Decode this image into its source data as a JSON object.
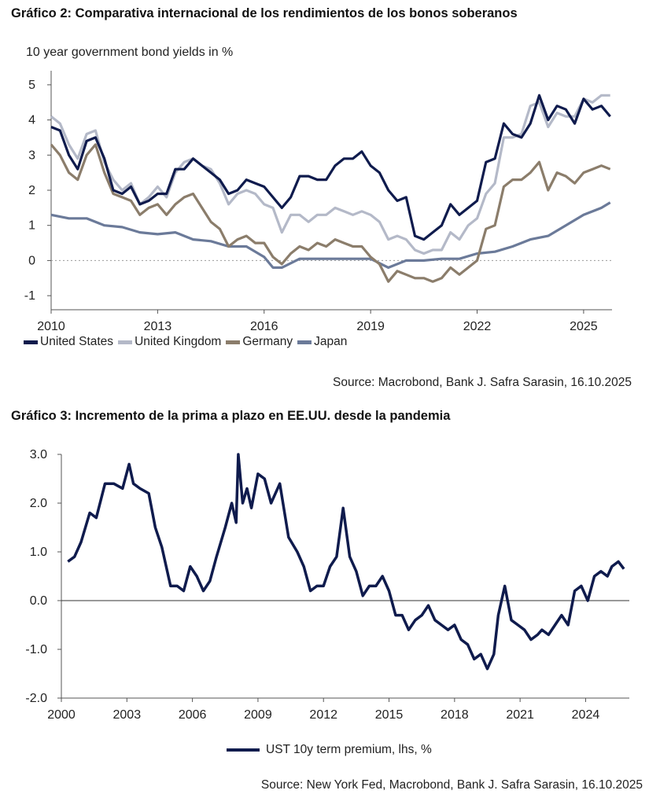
{
  "chart_data": [
    {
      "type": "line",
      "title": "Gráfico 2: Comparativa internacional de los rendimientos de los bonos soberanos",
      "subtitle": "10 year government bond yields in %",
      "xlabel": "",
      "ylabel": "",
      "xlim": [
        2010.0,
        2025.8
      ],
      "ylim": [
        -1.4,
        5.4
      ],
      "x_ticks": [
        2010,
        2013,
        2016,
        2019,
        2022,
        2025
      ],
      "x_tick_labels": [
        "2010",
        "2013",
        "2016",
        "2019",
        "2022",
        "2025"
      ],
      "y_ticks": [
        -1,
        0,
        1,
        2,
        3,
        4,
        5
      ],
      "y_tick_labels": [
        "-1",
        "0",
        "1",
        "2",
        "3",
        "4",
        "5"
      ],
      "zero_line": "dotted",
      "grid": false,
      "legend_position": "bottom-left",
      "source": "Source: Macrobond, Bank J. Safra Sarasin, 16.10.2025",
      "series": [
        {
          "name": "United States",
          "color": "#0f1b4d",
          "x": [
            2010.0,
            2010.25,
            2010.5,
            2010.75,
            2011.0,
            2011.25,
            2011.5,
            2011.75,
            2012.0,
            2012.25,
            2012.5,
            2012.75,
            2013.0,
            2013.25,
            2013.5,
            2013.75,
            2014.0,
            2014.25,
            2014.5,
            2014.75,
            2015.0,
            2015.25,
            2015.5,
            2015.75,
            2016.0,
            2016.25,
            2016.5,
            2016.75,
            2017.0,
            2017.25,
            2017.5,
            2017.75,
            2018.0,
            2018.25,
            2018.5,
            2018.75,
            2019.0,
            2019.25,
            2019.5,
            2019.75,
            2020.0,
            2020.25,
            2020.5,
            2020.75,
            2021.0,
            2021.25,
            2021.5,
            2021.75,
            2022.0,
            2022.25,
            2022.5,
            2022.75,
            2023.0,
            2023.25,
            2023.5,
            2023.75,
            2024.0,
            2024.25,
            2024.5,
            2024.75,
            2025.0,
            2025.25,
            2025.5,
            2025.75
          ],
          "values": [
            3.8,
            3.7,
            3.0,
            2.6,
            3.4,
            3.5,
            2.9,
            2.0,
            1.9,
            2.1,
            1.6,
            1.7,
            1.9,
            1.9,
            2.6,
            2.6,
            2.9,
            2.7,
            2.5,
            2.3,
            1.9,
            2.0,
            2.3,
            2.2,
            2.1,
            1.8,
            1.5,
            1.8,
            2.4,
            2.4,
            2.3,
            2.3,
            2.7,
            2.9,
            2.9,
            3.1,
            2.7,
            2.5,
            2.0,
            1.7,
            1.8,
            0.7,
            0.6,
            0.8,
            1.0,
            1.6,
            1.3,
            1.5,
            1.7,
            2.8,
            2.9,
            3.9,
            3.6,
            3.5,
            3.9,
            4.7,
            4.0,
            4.4,
            4.3,
            3.9,
            4.6,
            4.3,
            4.4,
            4.1
          ]
        },
        {
          "name": "United Kingdom",
          "color": "#b4b9c8",
          "x": [
            2010.0,
            2010.25,
            2010.5,
            2010.75,
            2011.0,
            2011.25,
            2011.5,
            2011.75,
            2012.0,
            2012.25,
            2012.5,
            2012.75,
            2013.0,
            2013.25,
            2013.5,
            2013.75,
            2014.0,
            2014.25,
            2014.5,
            2014.75,
            2015.0,
            2015.25,
            2015.5,
            2015.75,
            2016.0,
            2016.25,
            2016.5,
            2016.75,
            2017.0,
            2017.25,
            2017.5,
            2017.75,
            2018.0,
            2018.25,
            2018.5,
            2018.75,
            2019.0,
            2019.25,
            2019.5,
            2019.75,
            2020.0,
            2020.25,
            2020.5,
            2020.75,
            2021.0,
            2021.25,
            2021.5,
            2021.75,
            2022.0,
            2022.25,
            2022.5,
            2022.75,
            2023.0,
            2023.25,
            2023.5,
            2023.75,
            2024.0,
            2024.25,
            2024.5,
            2024.75,
            2025.0,
            2025.25,
            2025.5,
            2025.75
          ],
          "values": [
            4.1,
            3.9,
            3.3,
            2.9,
            3.6,
            3.7,
            2.8,
            2.3,
            2.0,
            2.2,
            1.6,
            1.8,
            2.1,
            1.8,
            2.5,
            2.8,
            2.9,
            2.7,
            2.6,
            2.2,
            1.6,
            1.9,
            2.0,
            1.9,
            1.6,
            1.5,
            0.8,
            1.3,
            1.3,
            1.1,
            1.3,
            1.3,
            1.5,
            1.4,
            1.3,
            1.4,
            1.3,
            1.1,
            0.6,
            0.7,
            0.6,
            0.3,
            0.2,
            0.3,
            0.3,
            0.8,
            0.6,
            1.0,
            1.2,
            1.9,
            2.2,
            3.5,
            3.5,
            3.6,
            4.4,
            4.5,
            3.8,
            4.2,
            4.1,
            4.1,
            4.6,
            4.5,
            4.7,
            4.7
          ]
        },
        {
          "name": "Germany",
          "color": "#8b7d6b",
          "x": [
            2010.0,
            2010.25,
            2010.5,
            2010.75,
            2011.0,
            2011.25,
            2011.5,
            2011.75,
            2012.0,
            2012.25,
            2012.5,
            2012.75,
            2013.0,
            2013.25,
            2013.5,
            2013.75,
            2014.0,
            2014.25,
            2014.5,
            2014.75,
            2015.0,
            2015.25,
            2015.5,
            2015.75,
            2016.0,
            2016.25,
            2016.5,
            2016.75,
            2017.0,
            2017.25,
            2017.5,
            2017.75,
            2018.0,
            2018.25,
            2018.5,
            2018.75,
            2019.0,
            2019.25,
            2019.5,
            2019.75,
            2020.0,
            2020.25,
            2020.5,
            2020.75,
            2021.0,
            2021.25,
            2021.5,
            2021.75,
            2022.0,
            2022.25,
            2022.5,
            2022.75,
            2023.0,
            2023.25,
            2023.5,
            2023.75,
            2024.0,
            2024.25,
            2024.5,
            2024.75,
            2025.0,
            2025.25,
            2025.5,
            2025.75
          ],
          "values": [
            3.3,
            3.0,
            2.5,
            2.3,
            3.0,
            3.3,
            2.5,
            1.9,
            1.8,
            1.7,
            1.3,
            1.5,
            1.6,
            1.3,
            1.6,
            1.8,
            1.9,
            1.5,
            1.1,
            0.9,
            0.4,
            0.6,
            0.7,
            0.5,
            0.5,
            0.1,
            -0.1,
            0.2,
            0.4,
            0.3,
            0.5,
            0.4,
            0.6,
            0.5,
            0.4,
            0.4,
            0.1,
            -0.1,
            -0.6,
            -0.3,
            -0.4,
            -0.5,
            -0.5,
            -0.6,
            -0.5,
            -0.2,
            -0.4,
            -0.2,
            0.0,
            0.9,
            1.0,
            2.1,
            2.3,
            2.3,
            2.5,
            2.8,
            2.0,
            2.5,
            2.4,
            2.2,
            2.5,
            2.6,
            2.7,
            2.6
          ]
        },
        {
          "name": "Japan",
          "color": "#6b7a99",
          "x": [
            2010.0,
            2010.5,
            2011.0,
            2011.5,
            2012.0,
            2012.5,
            2013.0,
            2013.5,
            2014.0,
            2014.5,
            2015.0,
            2015.5,
            2016.0,
            2016.25,
            2016.5,
            2017.0,
            2017.5,
            2018.0,
            2018.5,
            2019.0,
            2019.5,
            2020.0,
            2020.5,
            2021.0,
            2021.5,
            2022.0,
            2022.5,
            2023.0,
            2023.5,
            2024.0,
            2024.5,
            2025.0,
            2025.5,
            2025.75
          ],
          "values": [
            1.3,
            1.2,
            1.2,
            1.0,
            0.95,
            0.8,
            0.75,
            0.8,
            0.6,
            0.55,
            0.4,
            0.4,
            0.1,
            -0.2,
            -0.2,
            0.05,
            0.05,
            0.05,
            0.05,
            0.05,
            -0.2,
            0.0,
            0.0,
            0.05,
            0.05,
            0.2,
            0.25,
            0.4,
            0.6,
            0.7,
            1.0,
            1.3,
            1.5,
            1.65
          ]
        }
      ]
    },
    {
      "type": "line",
      "title": "Gráfico 3: Incremento de la prima a plazo en EE.UU. desde la pandemia",
      "xlabel": "",
      "ylabel": "",
      "xlim": [
        2000.0,
        2026.0
      ],
      "ylim": [
        -2.0,
        3.0
      ],
      "x_ticks": [
        2000,
        2003,
        2006,
        2009,
        2012,
        2015,
        2018,
        2021,
        2024
      ],
      "x_tick_labels": [
        "2000",
        "2003",
        "2006",
        "2009",
        "2012",
        "2015",
        "2018",
        "2021",
        "2024"
      ],
      "y_ticks": [
        -2.0,
        -1.0,
        0.0,
        1.0,
        2.0,
        3.0
      ],
      "y_tick_labels": [
        "-2.0",
        "-1.0",
        "0.0",
        "1.0",
        "2.0",
        "3.0"
      ],
      "zero_line": "solid",
      "grid": false,
      "legend_position": "bottom-center",
      "source": "Source: New York Fed, Macrobond, Bank J. Safra Sarasin, 16.10.2025",
      "series": [
        {
          "name": "UST 10y term premium, lhs, %",
          "color": "#0f1b4d",
          "x": [
            2000.3,
            2000.6,
            2000.9,
            2001.3,
            2001.6,
            2002.0,
            2002.4,
            2002.8,
            2003.1,
            2003.3,
            2003.6,
            2004.0,
            2004.3,
            2004.6,
            2005.0,
            2005.3,
            2005.6,
            2005.9,
            2006.2,
            2006.5,
            2006.8,
            2007.1,
            2007.5,
            2007.8,
            2008.0,
            2008.1,
            2008.3,
            2008.5,
            2008.7,
            2009.0,
            2009.3,
            2009.6,
            2010.0,
            2010.4,
            2010.8,
            2011.1,
            2011.4,
            2011.7,
            2012.0,
            2012.3,
            2012.6,
            2012.9,
            2013.2,
            2013.5,
            2013.8,
            2014.1,
            2014.4,
            2014.7,
            2015.0,
            2015.3,
            2015.6,
            2015.9,
            2016.2,
            2016.5,
            2016.8,
            2017.1,
            2017.4,
            2017.7,
            2018.0,
            2018.3,
            2018.6,
            2018.9,
            2019.2,
            2019.5,
            2019.8,
            2020.0,
            2020.3,
            2020.6,
            2020.9,
            2021.2,
            2021.5,
            2021.8,
            2022.0,
            2022.3,
            2022.6,
            2022.9,
            2023.2,
            2023.5,
            2023.8,
            2024.1,
            2024.4,
            2024.7,
            2025.0,
            2025.2,
            2025.5,
            2025.75
          ],
          "values": [
            0.8,
            0.9,
            1.2,
            1.8,
            1.7,
            2.4,
            2.4,
            2.3,
            2.8,
            2.4,
            2.3,
            2.2,
            1.5,
            1.1,
            0.3,
            0.3,
            0.2,
            0.7,
            0.5,
            0.2,
            0.4,
            0.9,
            1.5,
            2.0,
            1.6,
            3.0,
            2.0,
            2.3,
            1.9,
            2.6,
            2.5,
            2.0,
            2.4,
            1.3,
            1.0,
            0.7,
            0.2,
            0.3,
            0.3,
            0.7,
            0.9,
            1.9,
            0.9,
            0.6,
            0.1,
            0.3,
            0.3,
            0.5,
            0.2,
            -0.3,
            -0.3,
            -0.6,
            -0.4,
            -0.3,
            -0.1,
            -0.4,
            -0.5,
            -0.6,
            -0.5,
            -0.8,
            -0.9,
            -1.2,
            -1.1,
            -1.4,
            -1.1,
            -0.3,
            0.3,
            -0.4,
            -0.5,
            -0.6,
            -0.8,
            -0.7,
            -0.6,
            -0.7,
            -0.5,
            -0.3,
            -0.5,
            0.2,
            0.3,
            0.0,
            0.5,
            0.6,
            0.5,
            0.7,
            0.8,
            0.65
          ]
        }
      ]
    }
  ]
}
